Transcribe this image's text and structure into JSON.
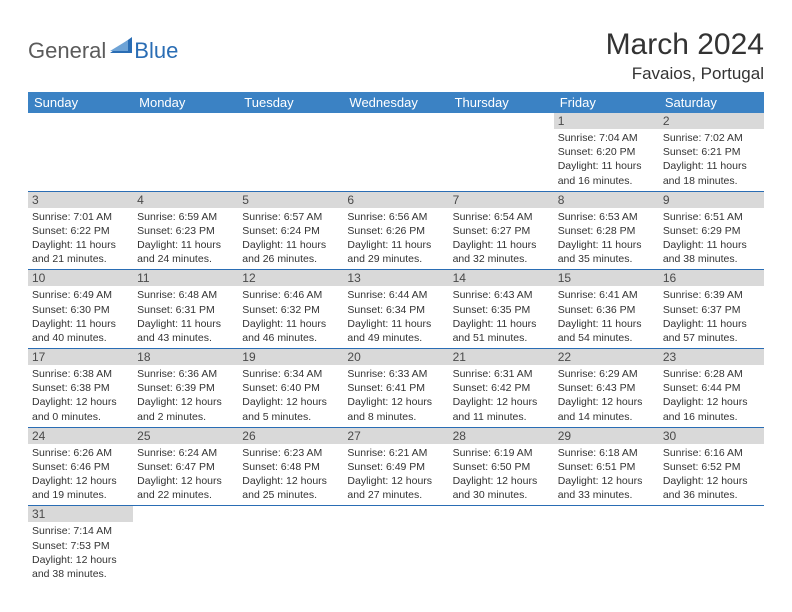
{
  "brand": {
    "part1": "General",
    "part2": "Blue"
  },
  "title": "March 2024",
  "location": "Favaios, Portugal",
  "colors": {
    "header_bg": "#3b82c4",
    "header_fg": "#ffffff",
    "daynum_bg": "#d9d9d9",
    "rule": "#2a6db4",
    "logo_gray": "#5b5b5b",
    "logo_blue": "#2a6db4"
  },
  "weekdays": [
    "Sunday",
    "Monday",
    "Tuesday",
    "Wednesday",
    "Thursday",
    "Friday",
    "Saturday"
  ],
  "weeks": [
    [
      null,
      null,
      null,
      null,
      null,
      {
        "n": "1",
        "sr": "Sunrise: 7:04 AM",
        "ss": "Sunset: 6:20 PM",
        "dl": "Daylight: 11 hours and 16 minutes."
      },
      {
        "n": "2",
        "sr": "Sunrise: 7:02 AM",
        "ss": "Sunset: 6:21 PM",
        "dl": "Daylight: 11 hours and 18 minutes."
      }
    ],
    [
      {
        "n": "3",
        "sr": "Sunrise: 7:01 AM",
        "ss": "Sunset: 6:22 PM",
        "dl": "Daylight: 11 hours and 21 minutes."
      },
      {
        "n": "4",
        "sr": "Sunrise: 6:59 AM",
        "ss": "Sunset: 6:23 PM",
        "dl": "Daylight: 11 hours and 24 minutes."
      },
      {
        "n": "5",
        "sr": "Sunrise: 6:57 AM",
        "ss": "Sunset: 6:24 PM",
        "dl": "Daylight: 11 hours and 26 minutes."
      },
      {
        "n": "6",
        "sr": "Sunrise: 6:56 AM",
        "ss": "Sunset: 6:26 PM",
        "dl": "Daylight: 11 hours and 29 minutes."
      },
      {
        "n": "7",
        "sr": "Sunrise: 6:54 AM",
        "ss": "Sunset: 6:27 PM",
        "dl": "Daylight: 11 hours and 32 minutes."
      },
      {
        "n": "8",
        "sr": "Sunrise: 6:53 AM",
        "ss": "Sunset: 6:28 PM",
        "dl": "Daylight: 11 hours and 35 minutes."
      },
      {
        "n": "9",
        "sr": "Sunrise: 6:51 AM",
        "ss": "Sunset: 6:29 PM",
        "dl": "Daylight: 11 hours and 38 minutes."
      }
    ],
    [
      {
        "n": "10",
        "sr": "Sunrise: 6:49 AM",
        "ss": "Sunset: 6:30 PM",
        "dl": "Daylight: 11 hours and 40 minutes."
      },
      {
        "n": "11",
        "sr": "Sunrise: 6:48 AM",
        "ss": "Sunset: 6:31 PM",
        "dl": "Daylight: 11 hours and 43 minutes."
      },
      {
        "n": "12",
        "sr": "Sunrise: 6:46 AM",
        "ss": "Sunset: 6:32 PM",
        "dl": "Daylight: 11 hours and 46 minutes."
      },
      {
        "n": "13",
        "sr": "Sunrise: 6:44 AM",
        "ss": "Sunset: 6:34 PM",
        "dl": "Daylight: 11 hours and 49 minutes."
      },
      {
        "n": "14",
        "sr": "Sunrise: 6:43 AM",
        "ss": "Sunset: 6:35 PM",
        "dl": "Daylight: 11 hours and 51 minutes."
      },
      {
        "n": "15",
        "sr": "Sunrise: 6:41 AM",
        "ss": "Sunset: 6:36 PM",
        "dl": "Daylight: 11 hours and 54 minutes."
      },
      {
        "n": "16",
        "sr": "Sunrise: 6:39 AM",
        "ss": "Sunset: 6:37 PM",
        "dl": "Daylight: 11 hours and 57 minutes."
      }
    ],
    [
      {
        "n": "17",
        "sr": "Sunrise: 6:38 AM",
        "ss": "Sunset: 6:38 PM",
        "dl": "Daylight: 12 hours and 0 minutes."
      },
      {
        "n": "18",
        "sr": "Sunrise: 6:36 AM",
        "ss": "Sunset: 6:39 PM",
        "dl": "Daylight: 12 hours and 2 minutes."
      },
      {
        "n": "19",
        "sr": "Sunrise: 6:34 AM",
        "ss": "Sunset: 6:40 PM",
        "dl": "Daylight: 12 hours and 5 minutes."
      },
      {
        "n": "20",
        "sr": "Sunrise: 6:33 AM",
        "ss": "Sunset: 6:41 PM",
        "dl": "Daylight: 12 hours and 8 minutes."
      },
      {
        "n": "21",
        "sr": "Sunrise: 6:31 AM",
        "ss": "Sunset: 6:42 PM",
        "dl": "Daylight: 12 hours and 11 minutes."
      },
      {
        "n": "22",
        "sr": "Sunrise: 6:29 AM",
        "ss": "Sunset: 6:43 PM",
        "dl": "Daylight: 12 hours and 14 minutes."
      },
      {
        "n": "23",
        "sr": "Sunrise: 6:28 AM",
        "ss": "Sunset: 6:44 PM",
        "dl": "Daylight: 12 hours and 16 minutes."
      }
    ],
    [
      {
        "n": "24",
        "sr": "Sunrise: 6:26 AM",
        "ss": "Sunset: 6:46 PM",
        "dl": "Daylight: 12 hours and 19 minutes."
      },
      {
        "n": "25",
        "sr": "Sunrise: 6:24 AM",
        "ss": "Sunset: 6:47 PM",
        "dl": "Daylight: 12 hours and 22 minutes."
      },
      {
        "n": "26",
        "sr": "Sunrise: 6:23 AM",
        "ss": "Sunset: 6:48 PM",
        "dl": "Daylight: 12 hours and 25 minutes."
      },
      {
        "n": "27",
        "sr": "Sunrise: 6:21 AM",
        "ss": "Sunset: 6:49 PM",
        "dl": "Daylight: 12 hours and 27 minutes."
      },
      {
        "n": "28",
        "sr": "Sunrise: 6:19 AM",
        "ss": "Sunset: 6:50 PM",
        "dl": "Daylight: 12 hours and 30 minutes."
      },
      {
        "n": "29",
        "sr": "Sunrise: 6:18 AM",
        "ss": "Sunset: 6:51 PM",
        "dl": "Daylight: 12 hours and 33 minutes."
      },
      {
        "n": "30",
        "sr": "Sunrise: 6:16 AM",
        "ss": "Sunset: 6:52 PM",
        "dl": "Daylight: 12 hours and 36 minutes."
      }
    ],
    [
      {
        "n": "31",
        "sr": "Sunrise: 7:14 AM",
        "ss": "Sunset: 7:53 PM",
        "dl": "Daylight: 12 hours and 38 minutes."
      },
      null,
      null,
      null,
      null,
      null,
      null
    ]
  ]
}
